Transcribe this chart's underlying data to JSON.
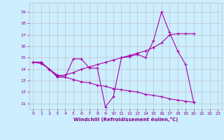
{
  "background_color": "#cceeff",
  "line_color": "#aa00aa",
  "grid_color": "#bbbbbb",
  "xlabel": "Windchill (Refroidissement éolien,°C)",
  "xlabel_color": "#880088",
  "tick_color": "#880088",
  "xlim": [
    -0.5,
    23.5
  ],
  "ylim": [
    10.5,
    19.8
  ],
  "yticks": [
    11,
    12,
    13,
    14,
    15,
    16,
    17,
    18,
    19
  ],
  "xticks": [
    0,
    1,
    2,
    3,
    4,
    5,
    6,
    7,
    8,
    9,
    10,
    11,
    12,
    13,
    14,
    15,
    16,
    17,
    18,
    19,
    20,
    21,
    22,
    23
  ],
  "line1_x": [
    0,
    1,
    2,
    3,
    4,
    5,
    6,
    7,
    8,
    9,
    10,
    11,
    12,
    13,
    14,
    15,
    16,
    17,
    18,
    19,
    20
  ],
  "line1_y": [
    14.6,
    14.6,
    14.0,
    13.3,
    13.3,
    14.9,
    14.9,
    14.1,
    14.1,
    10.7,
    11.6,
    15.0,
    15.1,
    15.3,
    15.0,
    16.5,
    19.0,
    17.2,
    15.6,
    14.4,
    11.1
  ],
  "line2_x": [
    0,
    1,
    2,
    3,
    4,
    5,
    6,
    7,
    8,
    9,
    10,
    11,
    12,
    13,
    14,
    15,
    16,
    17,
    18,
    19,
    20
  ],
  "line2_y": [
    14.6,
    14.5,
    14.0,
    13.5,
    13.3,
    13.1,
    12.9,
    12.8,
    12.6,
    12.5,
    12.3,
    12.2,
    12.1,
    12.0,
    11.8,
    11.7,
    11.6,
    11.4,
    11.3,
    11.2,
    11.1
  ],
  "line3_x": [
    0,
    1,
    2,
    3,
    4,
    5,
    6,
    7,
    8,
    9,
    10,
    11,
    12,
    13,
    14,
    15,
    16,
    17,
    18,
    19,
    20
  ],
  "line3_y": [
    14.6,
    14.6,
    14.0,
    13.4,
    13.5,
    13.7,
    14.0,
    14.2,
    14.4,
    14.6,
    14.8,
    15.0,
    15.2,
    15.4,
    15.6,
    15.9,
    16.3,
    17.0,
    17.1,
    17.1,
    17.1
  ]
}
